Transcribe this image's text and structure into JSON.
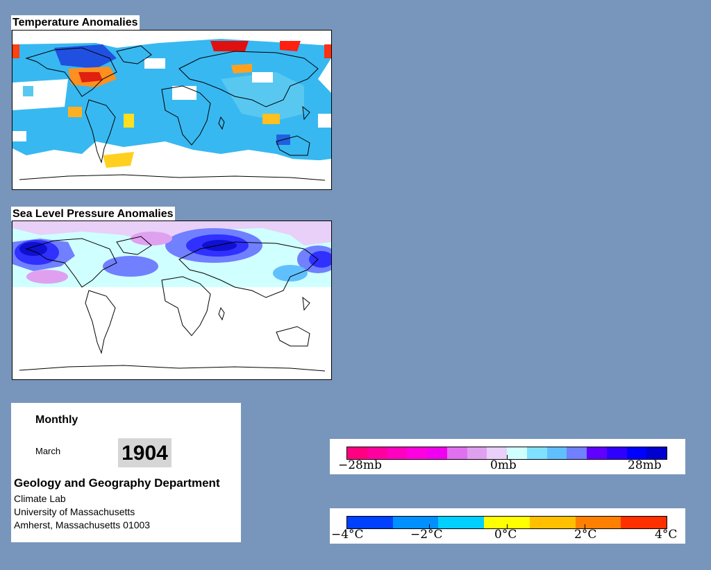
{
  "temperature_map": {
    "title": "Temperature Anomalies"
  },
  "pressure_map": {
    "title": "Sea Level Pressure Anomalies"
  },
  "info": {
    "frequency": "Monthly",
    "month": "March",
    "year": "1904",
    "department": "Geology and Geography Department",
    "lab": "Climate Lab",
    "university": "University of Massachusetts",
    "address": "Amherst, Massachusetts 01003"
  },
  "pressure_legend": {
    "labels": [
      "−28mb",
      "0mb",
      "28mb"
    ],
    "colors": [
      "#ff0080",
      "#ff00a0",
      "#ff00c0",
      "#ff00e0",
      "#f000f0",
      "#e070f0",
      "#e0a0f0",
      "#e8d0f8",
      "#d0ffff",
      "#80e0ff",
      "#60c0ff",
      "#7080ff",
      "#6000ff",
      "#3000ff",
      "#0000ff",
      "#0000d0"
    ]
  },
  "temperature_legend": {
    "labels": [
      "−4°C",
      "−2°C",
      "0°C",
      "2°C",
      "4°C"
    ],
    "colors": [
      "#0040ff",
      "#0090ff",
      "#00d0ff",
      "#ffff00",
      "#ffc000",
      "#ff8000",
      "#ff3000"
    ]
  }
}
